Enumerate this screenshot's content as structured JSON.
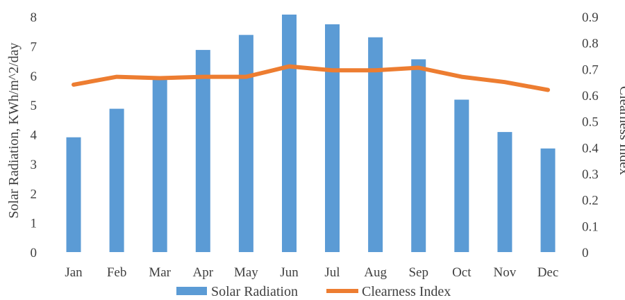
{
  "chart_data": {
    "type": "bar",
    "categories": [
      "Jan",
      "Feb",
      "Mar",
      "Apr",
      "May",
      "Jun",
      "Jul",
      "Aug",
      "Sep",
      "Oct",
      "Nov",
      "Dec"
    ],
    "series": [
      {
        "name": "Solar Radiation",
        "type": "bar",
        "axis": "left",
        "color": "#5b9bd5",
        "values": [
          3.9,
          4.87,
          5.9,
          6.87,
          7.38,
          8.07,
          7.74,
          7.3,
          6.55,
          5.18,
          4.08,
          3.52
        ]
      },
      {
        "name": "Clearness Index",
        "type": "line",
        "axis": "right",
        "color": "#ed7d31",
        "values": [
          0.64,
          0.67,
          0.665,
          0.67,
          0.67,
          0.71,
          0.695,
          0.695,
          0.705,
          0.67,
          0.65,
          0.62
        ]
      }
    ],
    "ylabel": "Solar Radiation, KWh/m^2/day",
    "y2label": "Clearness Index",
    "ylim": [
      0,
      8
    ],
    "y2lim": [
      0,
      0.9
    ],
    "yticks": [
      "0",
      "1",
      "2",
      "3",
      "4",
      "5",
      "6",
      "7",
      "8"
    ],
    "y2ticks": [
      "0",
      "0.1",
      "0.2",
      "0.3",
      "0.4",
      "0.5",
      "0.6",
      "0.7",
      "0.8",
      "0.9"
    ],
    "grid": false,
    "legend": "bottom"
  }
}
